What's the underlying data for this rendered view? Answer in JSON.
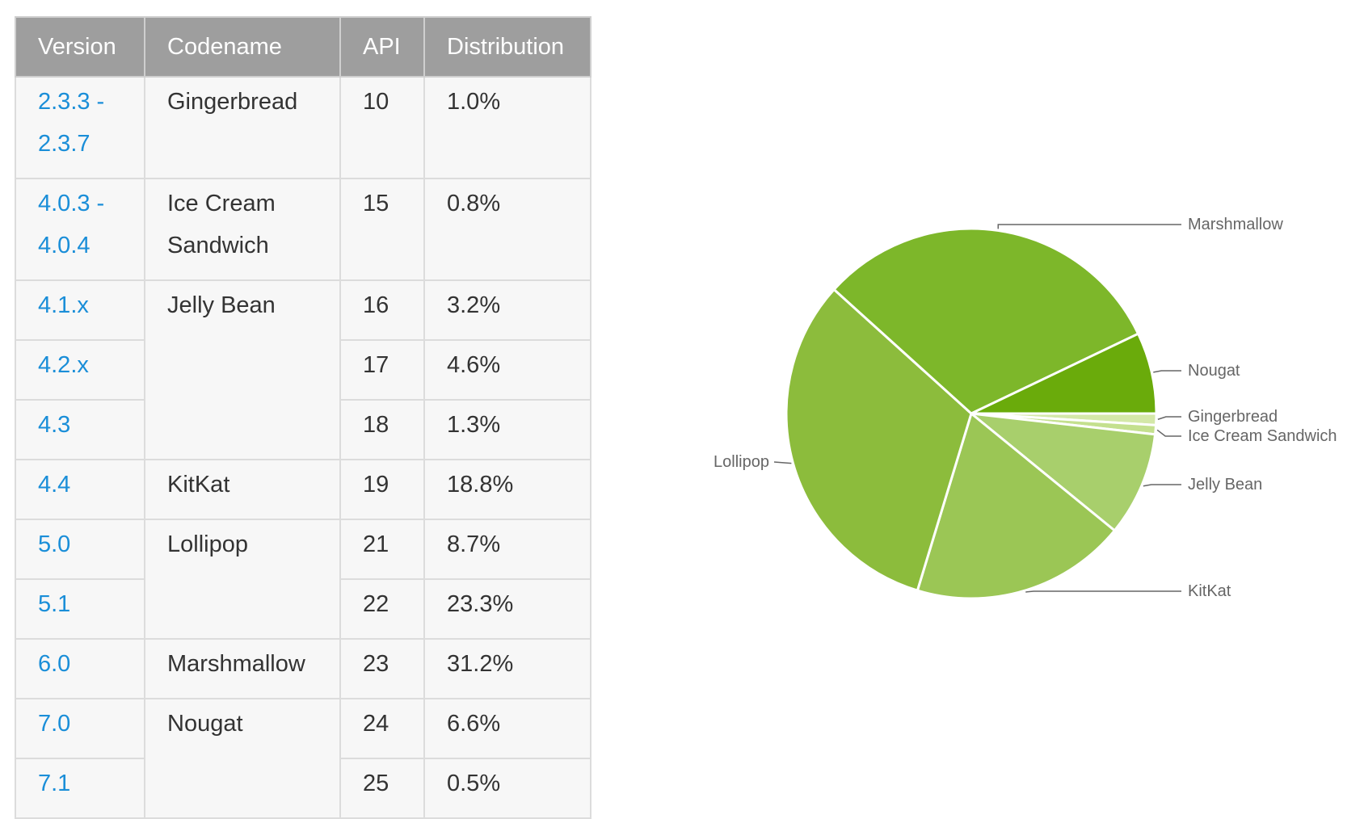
{
  "table": {
    "headers": [
      "Version",
      "Codename",
      "API",
      "Distribution"
    ],
    "rows": [
      {
        "version": "2.3.3 - 2.3.7",
        "codename": "Gingerbread",
        "api": "10",
        "distribution": "1.0%"
      },
      {
        "version": "4.0.3 - 4.0.4",
        "codename": "Ice Cream Sandwich",
        "api": "15",
        "distribution": "0.8%"
      },
      {
        "version": "4.1.x",
        "codename": "Jelly Bean",
        "api": "16",
        "distribution": "3.2%"
      },
      {
        "version": "4.2.x",
        "codename": "",
        "api": "17",
        "distribution": "4.6%"
      },
      {
        "version": "4.3",
        "codename": "",
        "api": "18",
        "distribution": "1.3%"
      },
      {
        "version": "4.4",
        "codename": "KitKat",
        "api": "19",
        "distribution": "18.8%"
      },
      {
        "version": "5.0",
        "codename": "Lollipop",
        "api": "21",
        "distribution": "8.7%"
      },
      {
        "version": "5.1",
        "codename": "",
        "api": "22",
        "distribution": "23.3%"
      },
      {
        "version": "6.0",
        "codename": "Marshmallow",
        "api": "23",
        "distribution": "31.2%"
      },
      {
        "version": "7.0",
        "codename": "Nougat",
        "api": "24",
        "distribution": "6.6%"
      },
      {
        "version": "7.1",
        "codename": "",
        "api": "25",
        "distribution": "0.5%"
      }
    ]
  },
  "chart_data": {
    "type": "pie",
    "title": "",
    "slices": [
      {
        "label": "Gingerbread",
        "value": 1.0,
        "color": "#d4e8a8"
      },
      {
        "label": "Ice Cream Sandwich",
        "value": 0.8,
        "color": "#c4e08e"
      },
      {
        "label": "Jelly Bean",
        "value": 9.1,
        "color": "#a8cf6c"
      },
      {
        "label": "KitKat",
        "value": 18.8,
        "color": "#9bc655"
      },
      {
        "label": "Lollipop",
        "value": 32.0,
        "color": "#8cbc3c"
      },
      {
        "label": "Marshmallow",
        "value": 31.2,
        "color": "#7db72a"
      },
      {
        "label": "Nougat",
        "value": 7.1,
        "color": "#6aab0b"
      }
    ],
    "start_angle_deg": 90,
    "direction": "clockwise",
    "slice_border_color": "#ffffff",
    "leader_line_color": "#666666"
  }
}
